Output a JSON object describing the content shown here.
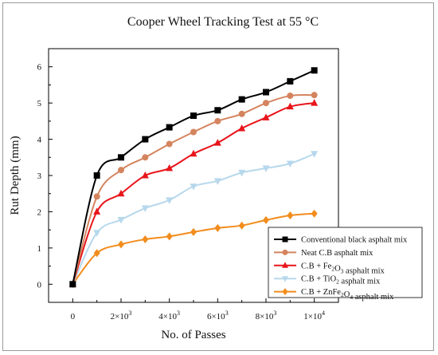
{
  "chart_data": {
    "type": "line",
    "title": "Cooper Wheel Tracking Test at 55 °C",
    "xlabel": "No. of Passes",
    "ylabel": "Rut Depth (mm)",
    "xlim": [
      -1000,
      11000
    ],
    "ylim": [
      -0.5,
      6.5
    ],
    "x": [
      0,
      1000,
      2000,
      3000,
      4000,
      5000,
      6000,
      7000,
      8000,
      9000,
      10000
    ],
    "x_tick_values": [
      0,
      2000,
      4000,
      6000,
      8000,
      10000
    ],
    "x_tick_labels": [
      {
        "base": "0",
        "exp": ""
      },
      {
        "base": "2×10",
        "exp": "3"
      },
      {
        "base": "4×10",
        "exp": "3"
      },
      {
        "base": "6×10",
        "exp": "3"
      },
      {
        "base": "8×10",
        "exp": "3"
      },
      {
        "base": "1×10",
        "exp": "4"
      }
    ],
    "y_ticks": [
      0,
      1,
      2,
      3,
      4,
      5,
      6
    ],
    "grid": false,
    "legend_position": "bottom-right",
    "series": [
      {
        "name": "Conventional black asphalt mix",
        "legend_parts": [
          {
            "t": "Conventional black asphalt mix",
            "sub": false
          }
        ],
        "color": "#000000",
        "marker": "square",
        "values": [
          0,
          3.0,
          3.5,
          4.0,
          4.33,
          4.65,
          4.8,
          5.1,
          5.3,
          5.6,
          5.9
        ]
      },
      {
        "name": "Neat C.B asphalt mix",
        "legend_parts": [
          {
            "t": "Neat C.B asphalt mix",
            "sub": false
          }
        ],
        "color": "#d4845e",
        "marker": "circle",
        "values": [
          0,
          2.42,
          3.15,
          3.5,
          3.87,
          4.2,
          4.5,
          4.7,
          5.0,
          5.2,
          5.22
        ]
      },
      {
        "name": "C.B + Fe2O3 asphalt mix",
        "legend_parts": [
          {
            "t": "C.B + Fe",
            "sub": false
          },
          {
            "t": "2",
            "sub": true
          },
          {
            "t": "O",
            "sub": false
          },
          {
            "t": "3",
            "sub": true
          },
          {
            "t": " asphalt mix",
            "sub": false
          }
        ],
        "color": "#e8151b",
        "marker": "triangle-up",
        "values": [
          0,
          2.0,
          2.5,
          3.0,
          3.2,
          3.6,
          3.9,
          4.3,
          4.6,
          4.9,
          5.0
        ]
      },
      {
        "name": "C.B + TiO2 asphalt mix",
        "legend_parts": [
          {
            "t": "C.B + TiO",
            "sub": false
          },
          {
            "t": "2",
            "sub": true
          },
          {
            "t": "  asphalt mix",
            "sub": false
          }
        ],
        "color": "#b7d8ec",
        "marker": "triangle-down",
        "values": [
          0,
          1.42,
          1.78,
          2.1,
          2.32,
          2.7,
          2.85,
          3.08,
          3.2,
          3.33,
          3.6
        ]
      },
      {
        "name": "C.B + ZnFe2O4 asphalt mix",
        "legend_parts": [
          {
            "t": "C.B + ZnFe",
            "sub": false
          },
          {
            "t": "2",
            "sub": true
          },
          {
            "t": "O",
            "sub": false
          },
          {
            "t": "4",
            "sub": true
          },
          {
            "t": "  asphalt mix",
            "sub": false
          }
        ],
        "color": "#f28c1c",
        "marker": "diamond",
        "values": [
          0,
          0.86,
          1.1,
          1.24,
          1.32,
          1.44,
          1.55,
          1.62,
          1.77,
          1.9,
          1.95
        ]
      }
    ]
  }
}
